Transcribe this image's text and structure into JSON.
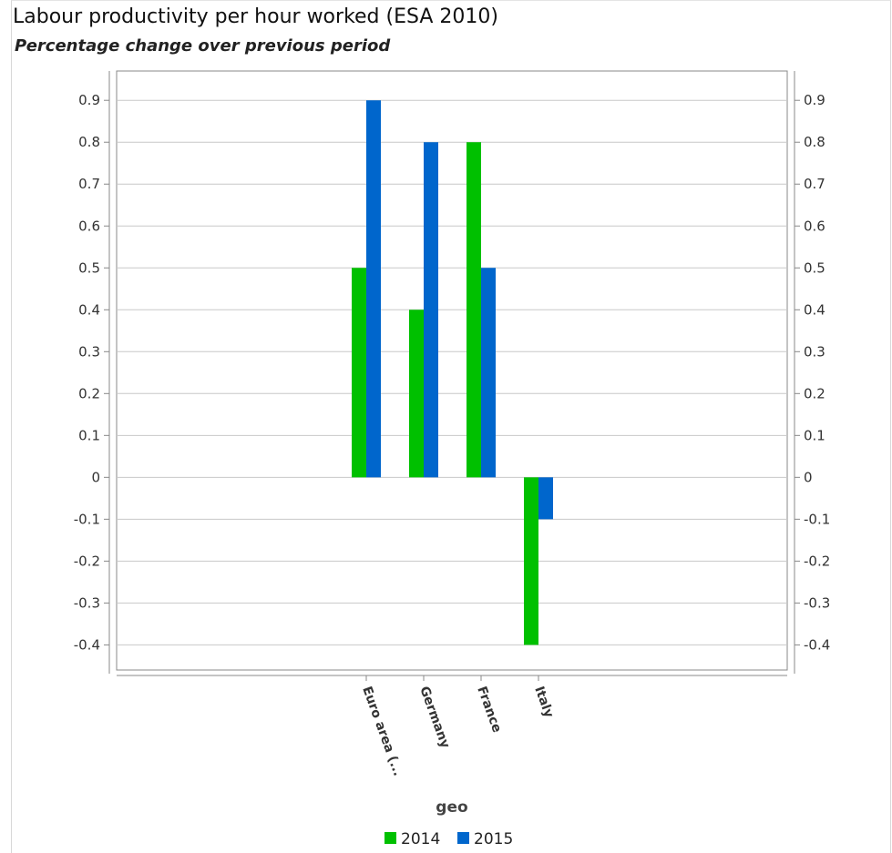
{
  "page": {
    "title": "Labour productivity per hour worked (ESA 2010)",
    "subtitle": "Percentage change over previous period"
  },
  "chart_data": {
    "type": "bar",
    "title": "Labour productivity per hour worked (ESA 2010)",
    "subtitle": "Percentage change over previous period",
    "xlabel": "geo",
    "ylabel": "",
    "categories": [
      "Euro area (...",
      "Germany",
      "France",
      "Italy"
    ],
    "series": [
      {
        "name": "2014",
        "color": "#00c000",
        "values": [
          0.5,
          0.4,
          0.8,
          -0.4
        ]
      },
      {
        "name": "2015",
        "color": "#0066cc",
        "values": [
          0.9,
          0.8,
          0.5,
          -0.1
        ]
      }
    ],
    "ylim": [
      -0.46,
      0.97
    ],
    "yticks": [
      "0.9",
      "0.8",
      "0.7",
      "0.6",
      "0.5",
      "0.4",
      "0.3",
      "0.2",
      "0.1",
      "0",
      "-0.1",
      "-0.2",
      "-0.3",
      "-0.4"
    ],
    "grid": true,
    "legend_position": "bottom-center",
    "secondary_axis": "right"
  }
}
